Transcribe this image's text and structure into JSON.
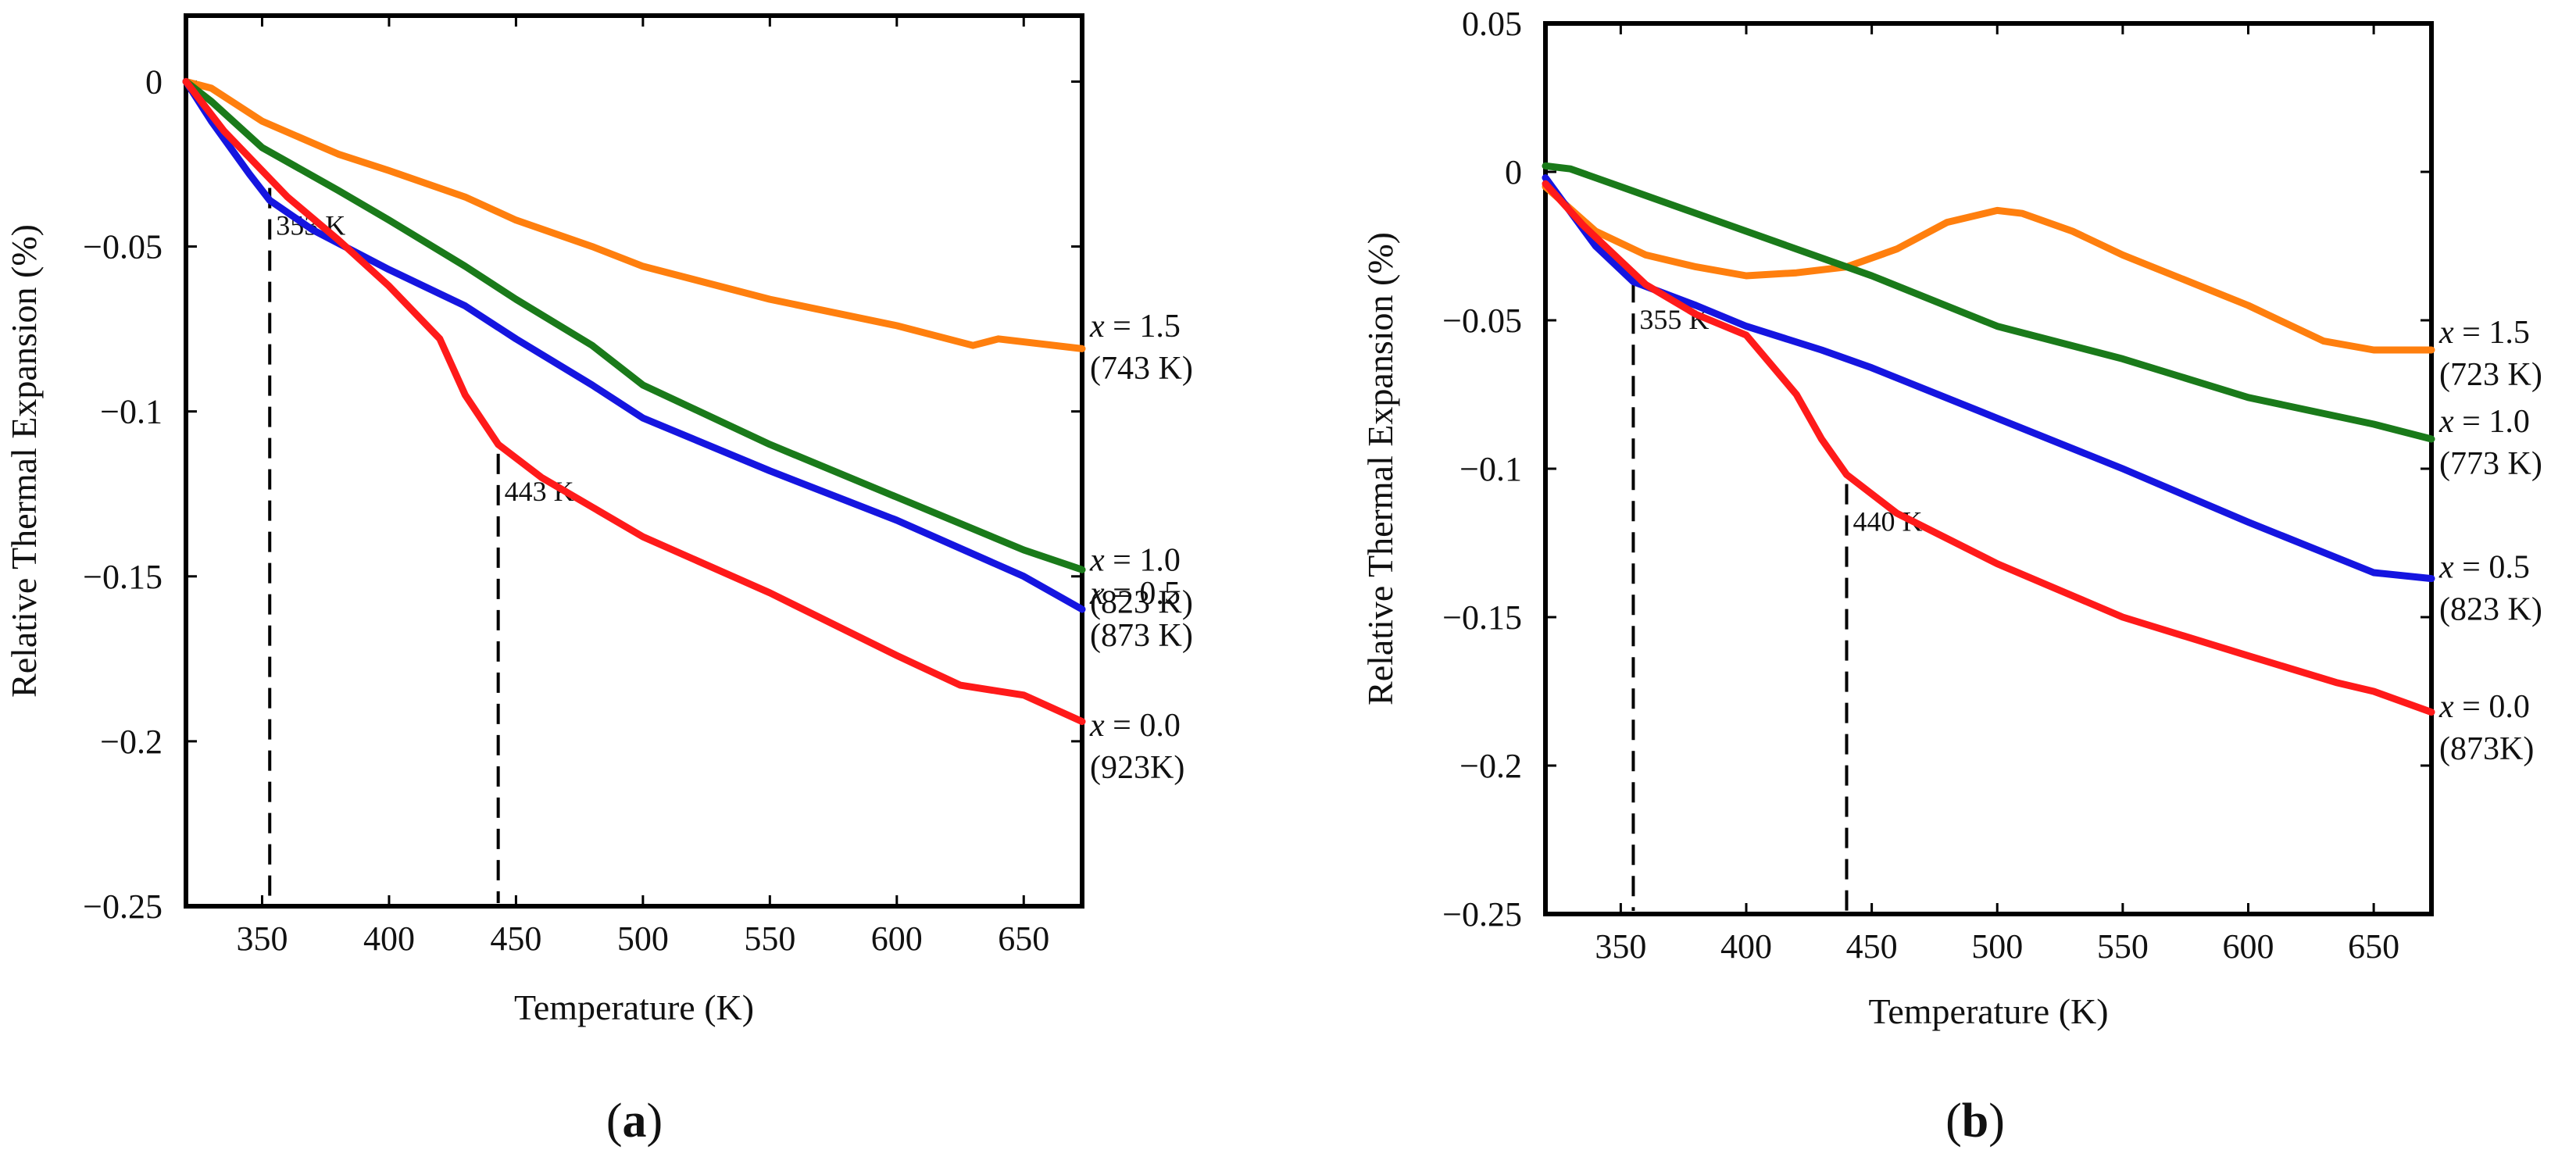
{
  "chart_data": [
    {
      "type": "line",
      "panel_label": "a",
      "xlabel": "Temperature (K)",
      "ylabel": "Relative Thermal Expansion (%)",
      "xlim": [
        320,
        673
      ],
      "ylim": [
        -0.25,
        0.02
      ],
      "xticks": [
        350,
        400,
        450,
        500,
        550,
        600,
        650
      ],
      "xtick_labels": [
        "350",
        "400",
        "450",
        "500",
        "550",
        "600",
        "650"
      ],
      "yticks": [
        0,
        -0.05,
        -0.1,
        -0.15,
        -0.2,
        -0.25
      ],
      "ytick_labels": [
        "0",
        "−0.05",
        "−0.1",
        "−0.15",
        "−0.2",
        "−0.25"
      ],
      "grid": false,
      "series": [
        {
          "name": "x = 1.5",
          "label_x": "x",
          "label_rest": " = 1.5",
          "temp": "(743 K)",
          "color": "#ff7f0e",
          "x": [
            320,
            330,
            350,
            380,
            400,
            430,
            450,
            480,
            500,
            550,
            600,
            630,
            640,
            673
          ],
          "y": [
            0,
            -0.002,
            -0.012,
            -0.022,
            -0.027,
            -0.035,
            -0.042,
            -0.05,
            -0.056,
            -0.066,
            -0.074,
            -0.08,
            -0.078,
            -0.081
          ]
        },
        {
          "name": "x = 1.0",
          "label_x": "x",
          "label_rest": " = 1.0",
          "temp": "(823 K)",
          "color": "#1a7a1a",
          "x": [
            320,
            330,
            350,
            380,
            400,
            430,
            450,
            480,
            500,
            550,
            600,
            650,
            673
          ],
          "y": [
            0,
            -0.006,
            -0.02,
            -0.033,
            -0.042,
            -0.056,
            -0.066,
            -0.08,
            -0.092,
            -0.11,
            -0.126,
            -0.142,
            -0.148
          ]
        },
        {
          "name": "x = 0.5",
          "label_x": "x",
          "label_rest": " = 0.5",
          "temp": "(873 K)",
          "color": "#1515e0",
          "x": [
            320,
            330,
            345,
            353,
            370,
            400,
            430,
            450,
            480,
            500,
            550,
            600,
            650,
            673
          ],
          "y": [
            0,
            -0.012,
            -0.028,
            -0.036,
            -0.045,
            -0.057,
            -0.068,
            -0.078,
            -0.092,
            -0.102,
            -0.118,
            -0.133,
            -0.15,
            -0.16
          ]
        },
        {
          "name": "x = 0.0",
          "label_x": "x",
          "label_rest": " = 0.0",
          "temp": "(923K)",
          "color": "#ff1a1a",
          "x": [
            320,
            335,
            360,
            380,
            400,
            420,
            430,
            443,
            460,
            500,
            550,
            600,
            625,
            650,
            673
          ],
          "y": [
            0,
            -0.015,
            -0.035,
            -0.048,
            -0.062,
            -0.078,
            -0.095,
            -0.11,
            -0.12,
            -0.138,
            -0.155,
            -0.174,
            -0.183,
            -0.186,
            -0.194
          ]
        }
      ],
      "annotations": [
        {
          "text": "353 K",
          "x": 353
        },
        {
          "text": "443 K",
          "x": 443
        }
      ]
    },
    {
      "type": "line",
      "panel_label": "b",
      "xlabel": "Temperature (K)",
      "ylabel": "Relative Thermal Expansion (%)",
      "xlim": [
        320,
        673
      ],
      "ylim": [
        -0.25,
        0.05
      ],
      "xticks": [
        350,
        400,
        450,
        500,
        550,
        600,
        650
      ],
      "xtick_labels": [
        "350",
        "400",
        "450",
        "500",
        "550",
        "600",
        "650"
      ],
      "yticks": [
        0.05,
        0,
        -0.05,
        -0.1,
        -0.15,
        -0.2,
        -0.25
      ],
      "ytick_labels": [
        "0.05",
        "0",
        "−0.05",
        "−0.1",
        "−0.15",
        "−0.2",
        "−0.25"
      ],
      "grid": false,
      "series": [
        {
          "name": "x = 1.5",
          "label_x": "x",
          "label_rest": " = 1.5",
          "temp": "(723 K)",
          "color": "#ff7f0e",
          "x": [
            320,
            340,
            360,
            380,
            400,
            420,
            440,
            460,
            480,
            500,
            510,
            530,
            550,
            600,
            630,
            650,
            673
          ],
          "y": [
            -0.005,
            -0.02,
            -0.028,
            -0.032,
            -0.035,
            -0.034,
            -0.032,
            -0.026,
            -0.017,
            -0.013,
            -0.014,
            -0.02,
            -0.028,
            -0.045,
            -0.057,
            -0.06,
            -0.06
          ]
        },
        {
          "name": "x = 1.0",
          "label_x": "x",
          "label_rest": " = 1.0",
          "temp": "(773 K)",
          "color": "#1a7a1a",
          "x": [
            320,
            330,
            350,
            400,
            450,
            500,
            550,
            600,
            650,
            673
          ],
          "y": [
            0.002,
            0.001,
            -0.005,
            -0.02,
            -0.035,
            -0.052,
            -0.063,
            -0.076,
            -0.085,
            -0.09
          ]
        },
        {
          "name": "x = 0.5",
          "label_x": "x",
          "label_rest": " = 0.5",
          "temp": "(823 K)",
          "color": "#1515e0",
          "x": [
            320,
            340,
            355,
            380,
            400,
            430,
            450,
            500,
            550,
            600,
            650,
            673
          ],
          "y": [
            -0.002,
            -0.025,
            -0.037,
            -0.045,
            -0.052,
            -0.06,
            -0.066,
            -0.083,
            -0.1,
            -0.118,
            -0.135,
            -0.137
          ]
        },
        {
          "name": "x = 0.0",
          "label_x": "x",
          "label_rest": " = 0.0",
          "temp": "(873K)",
          "color": "#ff1a1a",
          "x": [
            320,
            335,
            360,
            380,
            400,
            420,
            430,
            440,
            460,
            500,
            550,
            600,
            635,
            650,
            673
          ],
          "y": [
            -0.004,
            -0.018,
            -0.038,
            -0.048,
            -0.055,
            -0.075,
            -0.09,
            -0.102,
            -0.115,
            -0.132,
            -0.15,
            -0.163,
            -0.172,
            -0.175,
            -0.182
          ]
        }
      ],
      "annotations": [
        {
          "text": "355 K",
          "x": 355
        },
        {
          "text": "440 K",
          "x": 440
        }
      ]
    }
  ]
}
